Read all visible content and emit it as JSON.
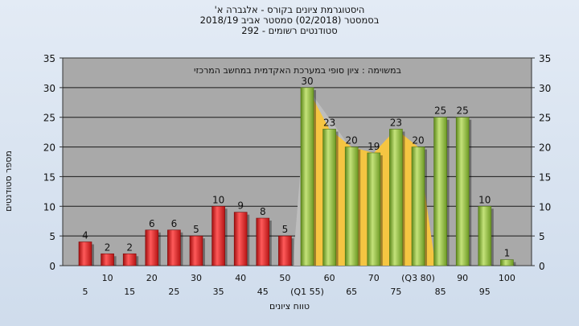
{
  "chart_data": {
    "type": "bar",
    "title": [
      "'היסטוגרמת ציונים בקורס - אלגברה א",
      "בסמסטר  (02/2018)  סמסטר אביב 2018/19",
      "סטודנטים רשומים - 292"
    ],
    "annotation": "במשוימה : ציון סופי במערכת האקדמית במחשב המרכזי",
    "xlabel": "טווח ציונים",
    "ylabel": "מספר סטודנטים",
    "ylim": [
      0,
      35
    ],
    "yticks": [
      0,
      5,
      10,
      15,
      20,
      25,
      30,
      35
    ],
    "categories": [
      "5",
      "10",
      "15",
      "20",
      "25",
      "30",
      "35",
      "40",
      "45",
      "50",
      "(Q1 55)",
      "60",
      "65",
      "70",
      "75",
      "(Q3 80)",
      "85",
      "90",
      "95",
      "100"
    ],
    "values": [
      4,
      2,
      2,
      6,
      6,
      5,
      10,
      9,
      8,
      5,
      30,
      23,
      20,
      19,
      23,
      20,
      25,
      25,
      10,
      1
    ],
    "bar_colors": {
      "fail": "#d42020",
      "pass": "#8ab83a"
    },
    "pass_from_index": 10,
    "gridlines": true,
    "secondary_y_axis": true
  }
}
